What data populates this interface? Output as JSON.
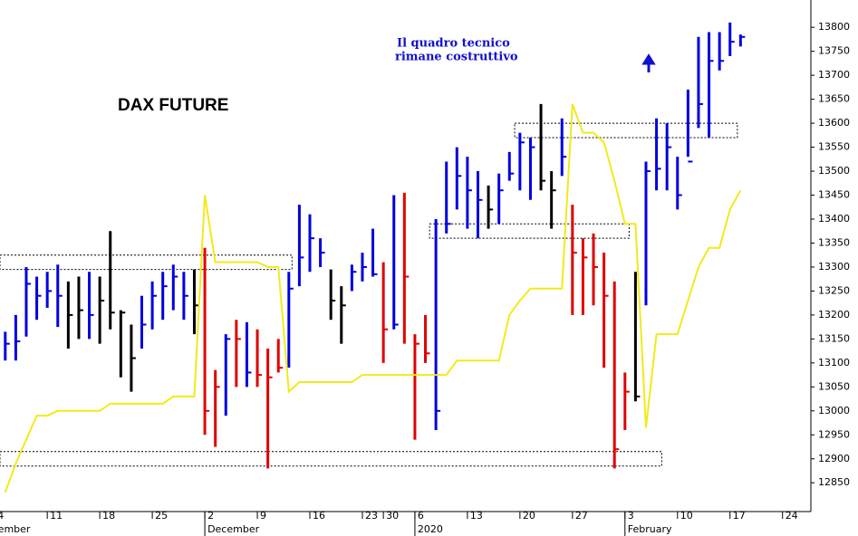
{
  "chart_data": {
    "type": "ohlc",
    "title": "DAX FUTURE",
    "annotations": [
      "Il quadro tecnico",
      "rimane costruttivo"
    ],
    "x": [
      0,
      1,
      2,
      3,
      4,
      5,
      6,
      7,
      8,
      9,
      10,
      11,
      12,
      13,
      14,
      15,
      16,
      17,
      18,
      19,
      20,
      21,
      22,
      23,
      24,
      25,
      26,
      27,
      28,
      29,
      30,
      31,
      32,
      33,
      34,
      35,
      36,
      37,
      38,
      39,
      40,
      41,
      42,
      43,
      44,
      45,
      46,
      47,
      48,
      49,
      50,
      51,
      52,
      53,
      54,
      55,
      56,
      57,
      58,
      59,
      60,
      61,
      62,
      63,
      64,
      65,
      66,
      67,
      68,
      69,
      70
    ],
    "high": [
      13165,
      13200,
      13300,
      13280,
      13290,
      13305,
      13270,
      13280,
      13290,
      13280,
      13375,
      13210,
      13180,
      13240,
      13270,
      13290,
      13305,
      13290,
      13295,
      13340,
      13085,
      13160,
      13190,
      13185,
      13170,
      13130,
      13150,
      13290,
      13430,
      13410,
      13360,
      13295,
      13260,
      13305,
      13330,
      13380,
      13310,
      13450,
      13455,
      13160,
      13200,
      13400,
      13520,
      13550,
      13530,
      13500,
      13470,
      13495,
      13540,
      13580,
      13570,
      13640,
      13500,
      13610,
      13430,
      13360,
      13370,
      13330,
      13270,
      13080,
      13290,
      13520,
      13610,
      13600,
      13530,
      13670,
      13780,
      13790,
      13790,
      13810,
      13785
    ],
    "low": [
      13105,
      13105,
      13155,
      13190,
      13215,
      13175,
      13130,
      13150,
      13150,
      13140,
      13170,
      13070,
      13040,
      13130,
      13170,
      13190,
      13210,
      13190,
      13160,
      12950,
      12925,
      12990,
      13050,
      13050,
      13050,
      12880,
      13080,
      13090,
      13260,
      13290,
      13300,
      13190,
      13140,
      13250,
      13270,
      13280,
      13100,
      13170,
      13140,
      12940,
      13100,
      12960,
      13370,
      13420,
      13380,
      13360,
      13380,
      13390,
      13480,
      13460,
      13440,
      13460,
      13380,
      13490,
      13200,
      13200,
      13220,
      13090,
      12880,
      12960,
      13020,
      13220,
      13460,
      13460,
      13420,
      13530,
      13590,
      13570,
      13710,
      13740,
      13760
    ],
    "close": [
      13140,
      13145,
      13265,
      13240,
      13250,
      13240,
      13200,
      13210,
      13200,
      13230,
      13205,
      13205,
      13110,
      13180,
      13240,
      13260,
      13280,
      13240,
      13220,
      13000,
      13050,
      13150,
      13150,
      13080,
      13075,
      13070,
      13090,
      13255,
      13320,
      13360,
      13330,
      13230,
      13220,
      13290,
      13300,
      13285,
      13170,
      13180,
      13280,
      13140,
      13120,
      13000,
      13390,
      13490,
      13460,
      13440,
      13420,
      13460,
      13495,
      13560,
      13550,
      13480,
      13460,
      13530,
      13330,
      13320,
      13300,
      13240,
      12920,
      13040,
      13030,
      13500,
      13505,
      13550,
      13450,
      13520,
      13640,
      13730,
      13730,
      13770,
      13780
    ],
    "colors": [
      "#0000e0",
      "#0000e0",
      "#0000e0",
      "#0000e0",
      "#0000e0",
      "#0000e0",
      "#000000",
      "#000000",
      "#0000e0",
      "#000000",
      "#000000",
      "#000000",
      "#000000",
      "#0000e0",
      "#0000e0",
      "#0000e0",
      "#0000e0",
      "#0000e0",
      "#000000",
      "#e00000",
      "#e00000",
      "#0000e0",
      "#e00000",
      "#0000e0",
      "#e00000",
      "#e00000",
      "#e00000",
      "#0000e0",
      "#0000e0",
      "#0000e0",
      "#0000e0",
      "#000000",
      "#000000",
      "#0000e0",
      "#0000e0",
      "#0000e0",
      "#e00000",
      "#0000e0",
      "#e00000",
      "#e00000",
      "#e00000",
      "#0000e0",
      "#0000e0",
      "#0000e0",
      "#0000e0",
      "#0000e0",
      "#000000",
      "#0000e0",
      "#0000e0",
      "#0000e0",
      "#0000e0",
      "#000000",
      "#000000",
      "#0000e0",
      "#e00000",
      "#e00000",
      "#e00000",
      "#e00000",
      "#e00000",
      "#e00000",
      "#000000",
      "#0000e0",
      "#0000e0",
      "#0000e0",
      "#0000e0",
      "#0000e0",
      "#0000e0",
      "#0000e0",
      "#0000e0",
      "#0000e0",
      "#0000e0"
    ],
    "line": {
      "color": "#f2ea1a",
      "values": [
        12830,
        12890,
        12940,
        12990,
        12990,
        13000,
        13000,
        13000,
        13000,
        13000,
        13015,
        13015,
        13015,
        13015,
        13015,
        13015,
        13030,
        13030,
        13030,
        13450,
        13310,
        13310,
        13310,
        13310,
        13310,
        13300,
        13300,
        13040,
        13060,
        13060,
        13060,
        13060,
        13060,
        13060,
        13075,
        13075,
        13075,
        13075,
        13075,
        13075,
        13075,
        13075,
        13075,
        13105,
        13105,
        13105,
        13105,
        13105,
        13200,
        13230,
        13255,
        13255,
        13255,
        13255,
        13640,
        13580,
        13580,
        13560,
        13480,
        13390,
        13390,
        12965,
        13160,
        13160,
        13160,
        13230,
        13300,
        13340,
        13340,
        13420,
        13460
      ]
    },
    "zones": [
      {
        "x": [
          -0.5,
          27.3
        ],
        "y": [
          13295,
          13325
        ]
      },
      {
        "x": [
          -0.5,
          62.5
        ],
        "y": [
          12885,
          12915
        ]
      },
      {
        "x": [
          40.4,
          59.4
        ],
        "y": [
          13360,
          13390
        ]
      },
      {
        "x": [
          48.5,
          69.7
        ],
        "y": [
          13570,
          13600
        ]
      }
    ],
    "xlim": [
      -0.5,
      76.7
    ],
    "ylim": [
      12790,
      13857
    ],
    "xticks": [
      {
        "value": -1,
        "label": "4"
      },
      {
        "value": 4,
        "label": "11"
      },
      {
        "value": 9,
        "label": "18"
      },
      {
        "value": 14,
        "label": "25"
      },
      {
        "value": 19,
        "label": "2"
      },
      {
        "value": 24,
        "label": "9"
      },
      {
        "value": 29,
        "label": "16"
      },
      {
        "value": 34,
        "label": "23"
      },
      {
        "value": 36,
        "label": "30"
      },
      {
        "value": 39,
        "label": "6"
      },
      {
        "value": 44,
        "label": "13"
      },
      {
        "value": 49,
        "label": "20"
      },
      {
        "value": 54,
        "label": "27"
      },
      {
        "value": 59,
        "label": "3"
      },
      {
        "value": 64,
        "label": "10"
      },
      {
        "value": 69,
        "label": "17"
      },
      {
        "value": 74,
        "label": "24"
      }
    ],
    "month_labels": [
      {
        "value": -1,
        "label": "November"
      },
      {
        "value": 19,
        "label": "December"
      },
      {
        "value": 39,
        "label": "2020"
      },
      {
        "value": 59,
        "label": "February"
      }
    ],
    "yticks": [
      12850,
      12900,
      12950,
      13000,
      13050,
      13100,
      13150,
      13200,
      13250,
      13300,
      13350,
      13400,
      13450,
      13500,
      13550,
      13600,
      13650,
      13700,
      13750,
      13800
    ]
  }
}
